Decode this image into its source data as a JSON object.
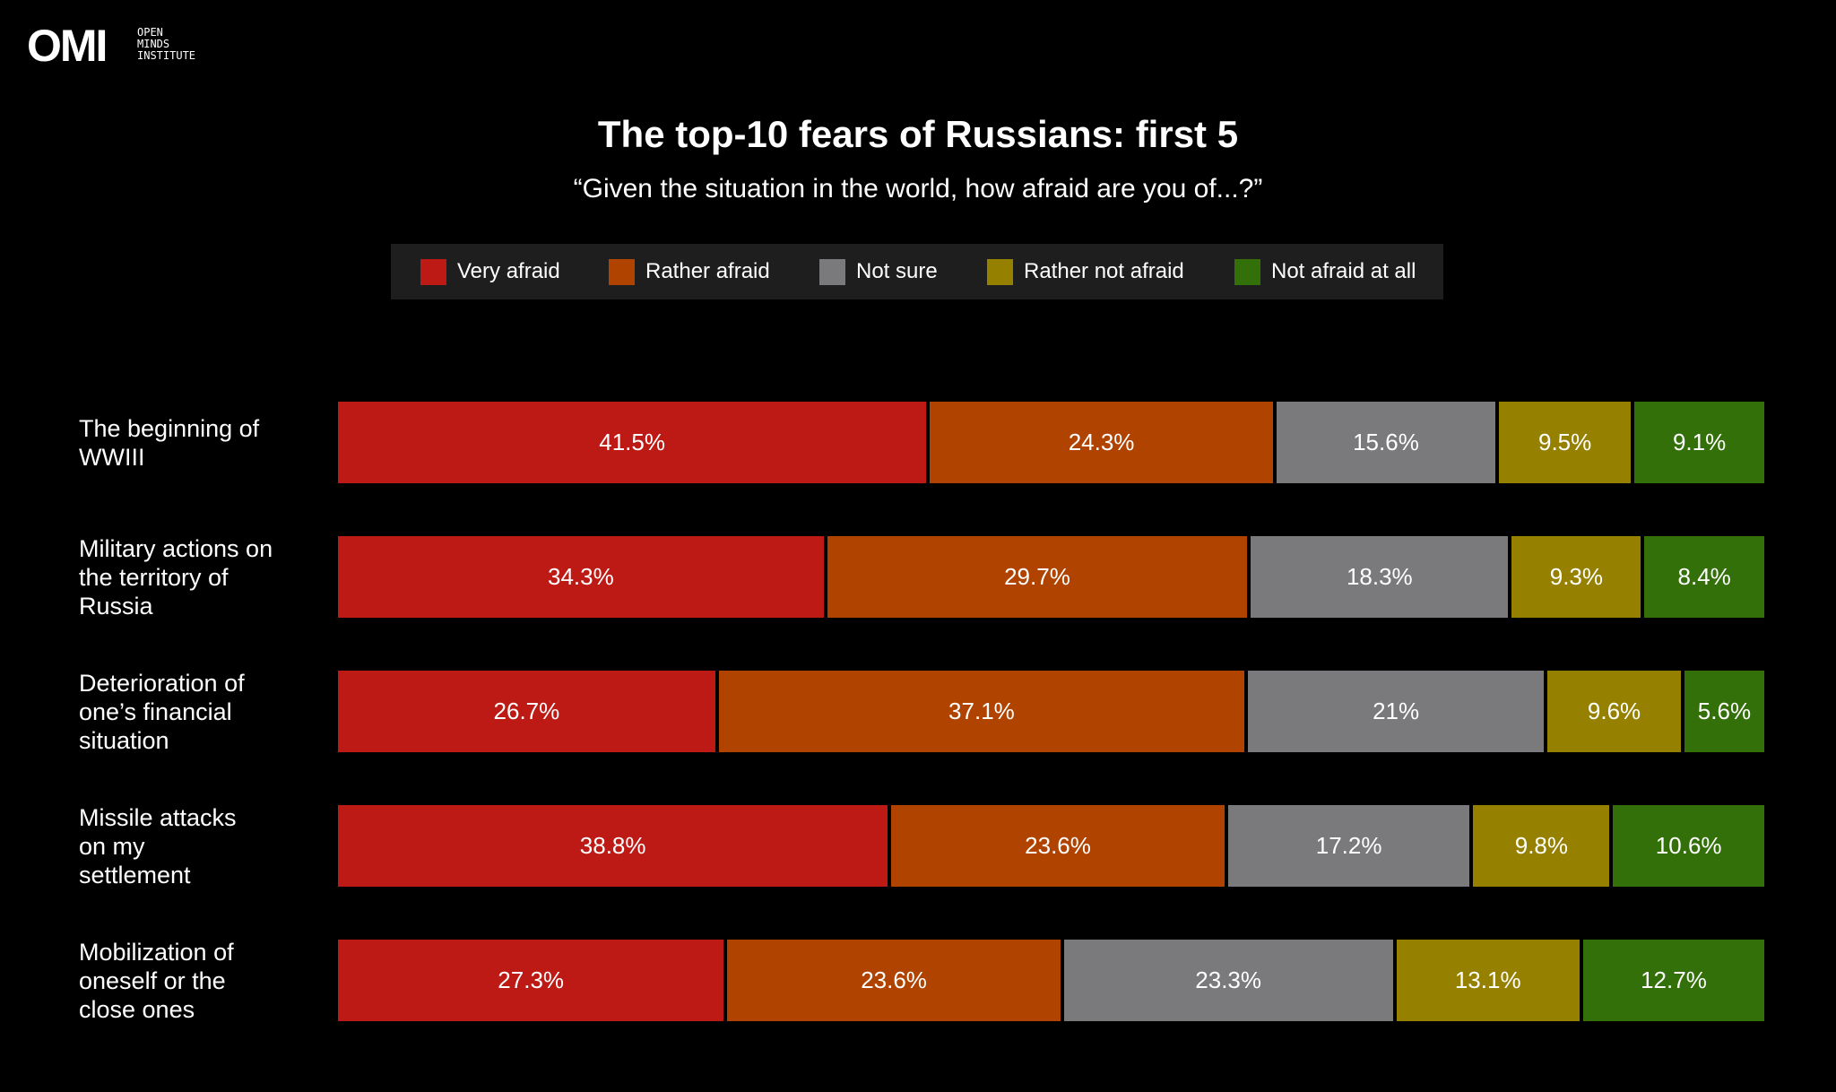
{
  "logo": {
    "mark": "OMI",
    "name": "OPEN\nMINDS\nINSTITUTE"
  },
  "chart_data": {
    "type": "stacked-bar-horizontal",
    "title": "The top-10 fears of Russians: first 5",
    "subtitle": "“Given the situation in the world, how afraid are you of...?”",
    "categories": [
      "The beginning of\nWWIII",
      "Military actions on\nthe territory of\nRussia",
      "Deterioration of\none’s financial\nsituation",
      "Missile attacks\non my\nsettlement",
      "Mobilization of\noneself or the\nclose ones"
    ],
    "series": [
      {
        "name": "Very afraid",
        "color": "#bd1a15",
        "values": [
          41.5,
          34.3,
          26.7,
          38.8,
          27.3
        ],
        "value_labels": [
          "41.5%",
          "34.3%",
          "26.7%",
          "38.8%",
          "27.3%"
        ]
      },
      {
        "name": "Rather afraid",
        "color": "#b04300",
        "values": [
          24.3,
          29.7,
          37.1,
          23.6,
          23.6
        ],
        "value_labels": [
          "24.3%",
          "29.7%",
          "37.1%",
          "23.6%",
          "23.6%"
        ]
      },
      {
        "name": "Not sure",
        "color": "#7a797b",
        "values": [
          15.6,
          18.3,
          21,
          17.2,
          23.3
        ],
        "value_labels": [
          "15.6%",
          "18.3%",
          "21%",
          "17.2%",
          "23.3%"
        ]
      },
      {
        "name": "Rather not afraid",
        "color": "#968000",
        "values": [
          9.5,
          9.3,
          9.6,
          9.8,
          13.1
        ],
        "value_labels": [
          "9.5%",
          "9.3%",
          "9.6%",
          "9.8%",
          "13.1%"
        ]
      },
      {
        "name": "Not afraid at all",
        "color": "#337009",
        "values": [
          9.1,
          8.4,
          5.6,
          10.6,
          12.7
        ],
        "value_labels": [
          "9.1%",
          "8.4%",
          "5.6%",
          "10.6%",
          "12.7%"
        ]
      }
    ]
  }
}
